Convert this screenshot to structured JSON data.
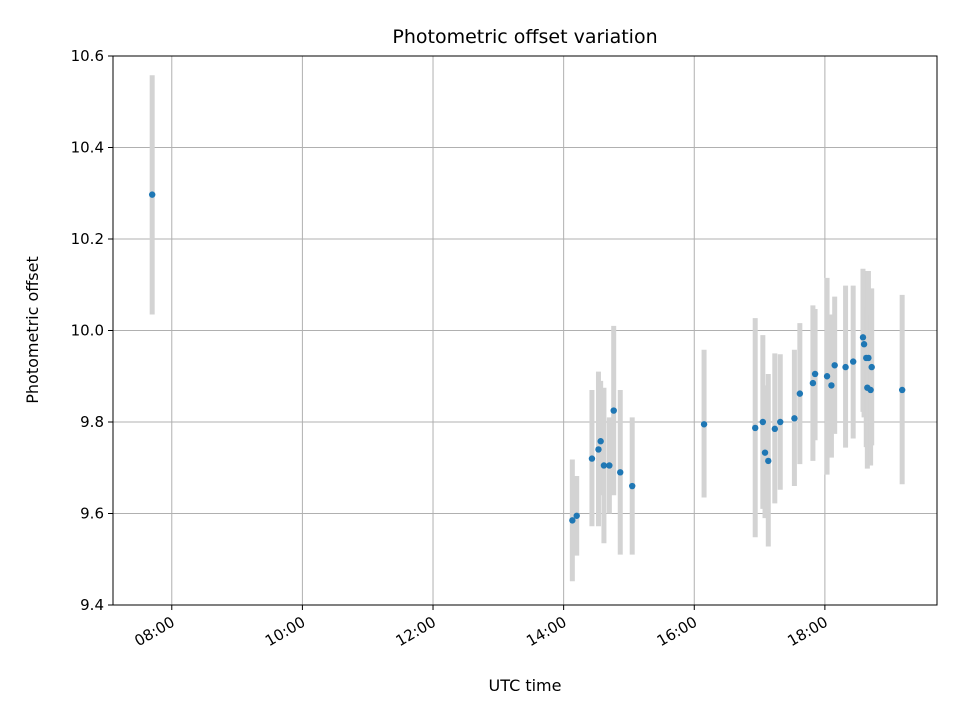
{
  "chart_data": {
    "type": "scatter",
    "title": "Photometric offset variation",
    "xlabel": "UTC time",
    "ylabel": "Photometric offset",
    "x_unit": "time (HH:MM, UTC)",
    "xlim": [
      "07:06",
      "19:43"
    ],
    "ylim": [
      9.4,
      10.6
    ],
    "x_ticks": [
      "08:00",
      "10:00",
      "12:00",
      "14:00",
      "16:00",
      "18:00"
    ],
    "y_ticks": [
      "9.4",
      "9.6",
      "9.8",
      "10.0",
      "10.2",
      "10.4",
      "10.6"
    ],
    "grid": true,
    "legend": "none",
    "marker_color": "#1f77b4",
    "errorbar_color": "#d3d3d3",
    "points": [
      {
        "x": "07:42",
        "y": 10.297,
        "lo": 10.035,
        "hi": 10.558
      },
      {
        "x": "14:08",
        "y": 9.585,
        "lo": 9.452,
        "hi": 9.718
      },
      {
        "x": "14:12",
        "y": 9.595,
        "lo": 9.508,
        "hi": 9.682
      },
      {
        "x": "14:26",
        "y": 9.72,
        "lo": 9.572,
        "hi": 9.87
      },
      {
        "x": "14:32",
        "y": 9.74,
        "lo": 9.572,
        "hi": 9.91
      },
      {
        "x": "14:34",
        "y": 9.758,
        "lo": 9.64,
        "hi": 9.89
      },
      {
        "x": "14:37",
        "y": 9.705,
        "lo": 9.535,
        "hi": 9.875
      },
      {
        "x": "14:42",
        "y": 9.705,
        "lo": 9.6,
        "hi": 9.81
      },
      {
        "x": "14:46",
        "y": 9.825,
        "lo": 9.64,
        "hi": 10.01
      },
      {
        "x": "14:52",
        "y": 9.69,
        "lo": 9.51,
        "hi": 9.87
      },
      {
        "x": "15:03",
        "y": 9.66,
        "lo": 9.51,
        "hi": 9.81
      },
      {
        "x": "16:09",
        "y": 9.795,
        "lo": 9.635,
        "hi": 9.958
      },
      {
        "x": "16:56",
        "y": 9.787,
        "lo": 9.548,
        "hi": 10.027
      },
      {
        "x": "17:03",
        "y": 9.8,
        "lo": 9.61,
        "hi": 9.99
      },
      {
        "x": "17:05",
        "y": 9.733,
        "lo": 9.59,
        "hi": 9.88
      },
      {
        "x": "17:08",
        "y": 9.715,
        "lo": 9.528,
        "hi": 9.905
      },
      {
        "x": "17:14",
        "y": 9.785,
        "lo": 9.622,
        "hi": 9.95
      },
      {
        "x": "17:19",
        "y": 9.8,
        "lo": 9.652,
        "hi": 9.948
      },
      {
        "x": "17:32",
        "y": 9.808,
        "lo": 9.66,
        "hi": 9.958
      },
      {
        "x": "17:37",
        "y": 9.862,
        "lo": 9.708,
        "hi": 10.016
      },
      {
        "x": "17:49",
        "y": 9.885,
        "lo": 9.715,
        "hi": 10.055
      },
      {
        "x": "17:51",
        "y": 9.905,
        "lo": 9.76,
        "hi": 10.047
      },
      {
        "x": "18:02",
        "y": 9.9,
        "lo": 9.685,
        "hi": 10.115
      },
      {
        "x": "18:06",
        "y": 9.88,
        "lo": 9.722,
        "hi": 10.035
      },
      {
        "x": "18:09",
        "y": 9.924,
        "lo": 9.774,
        "hi": 10.074
      },
      {
        "x": "18:19",
        "y": 9.92,
        "lo": 9.744,
        "hi": 10.098
      },
      {
        "x": "18:26",
        "y": 9.932,
        "lo": 9.764,
        "hi": 10.098
      },
      {
        "x": "18:35",
        "y": 9.985,
        "lo": 9.822,
        "hi": 10.135
      },
      {
        "x": "18:36",
        "y": 9.97,
        "lo": 9.81,
        "hi": 10.13
      },
      {
        "x": "18:38",
        "y": 9.94,
        "lo": 9.745,
        "hi": 10.13
      },
      {
        "x": "18:39",
        "y": 9.875,
        "lo": 9.698,
        "hi": 10.052
      },
      {
        "x": "18:40",
        "y": 9.94,
        "lo": 9.75,
        "hi": 10.13
      },
      {
        "x": "18:42",
        "y": 9.87,
        "lo": 9.705,
        "hi": 10.035
      },
      {
        "x": "18:43",
        "y": 9.92,
        "lo": 9.749,
        "hi": 10.092
      },
      {
        "x": "19:11",
        "y": 9.87,
        "lo": 9.664,
        "hi": 10.078
      }
    ]
  }
}
